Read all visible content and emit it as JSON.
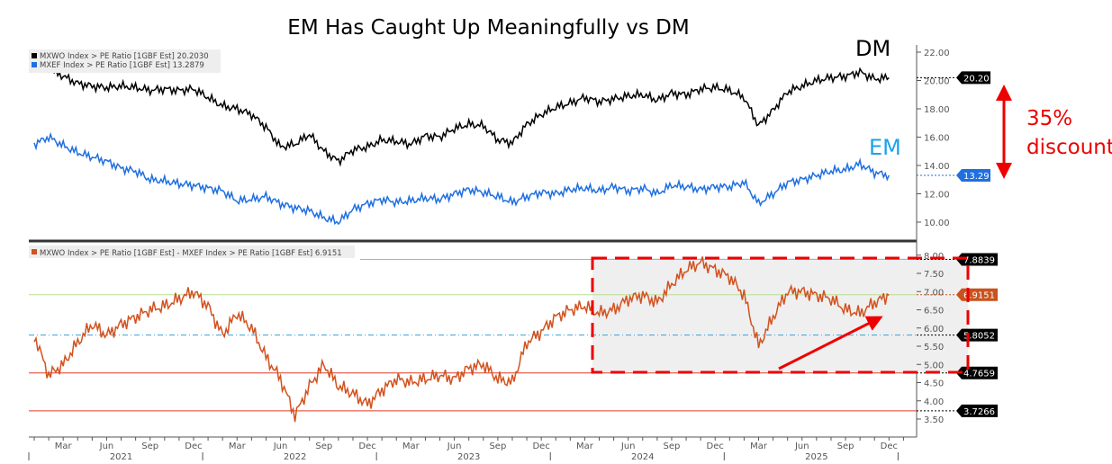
{
  "chart_data": [
    {
      "type": "line",
      "title": "EM Has Caught Up Meaningfully vs DM",
      "ylim": [
        9,
        22.5
      ],
      "yticks": [
        "10.00",
        "12.00",
        "14.00",
        "16.00",
        "18.00",
        "20.00",
        "22.00"
      ],
      "legend": [
        "MXWO Index > PE Ratio [1GBF Est]  20.2030",
        "MXEF Index > PE Ratio [1GBF Est]   13.2879"
      ],
      "legend_placement": "top-left",
      "series": [
        {
          "name": "DM",
          "color": "#000000",
          "last_label": "20.20",
          "values": [
            21.0,
            20.8,
            20.3,
            19.8,
            19.6,
            19.5,
            19.6,
            19.5,
            19.3,
            19.4,
            19.3,
            19.4,
            18.8,
            18.2,
            18.0,
            17.6,
            16.7,
            15.3,
            15.5,
            16.2,
            15.0,
            14.3,
            15.1,
            15.3,
            15.8,
            15.7,
            15.5,
            16.1,
            16.0,
            16.6,
            16.9,
            16.8,
            15.8,
            15.6,
            16.9,
            17.6,
            18.1,
            18.4,
            18.8,
            18.5,
            18.7,
            18.9,
            19.0,
            18.6,
            19.1,
            19.0,
            19.4,
            19.5,
            19.3,
            18.8,
            16.8,
            17.9,
            19.2,
            19.6,
            20.0,
            20.2,
            20.3,
            20.6,
            20.1,
            20.2
          ]
        },
        {
          "name": "EM",
          "color": "#1f6fe0",
          "last_label": "13.29",
          "values": [
            15.5,
            16.0,
            15.4,
            14.9,
            14.6,
            14.3,
            13.8,
            13.6,
            13.0,
            12.9,
            12.7,
            12.6,
            12.4,
            12.2,
            11.5,
            11.6,
            11.8,
            11.3,
            11.0,
            10.8,
            10.3,
            10.0,
            10.9,
            11.3,
            11.6,
            11.4,
            11.5,
            11.7,
            11.6,
            12.0,
            12.3,
            12.1,
            11.8,
            11.4,
            11.8,
            12.1,
            12.0,
            12.3,
            12.4,
            12.2,
            12.5,
            12.2,
            12.4,
            12.0,
            12.6,
            12.5,
            12.3,
            12.5,
            12.5,
            12.8,
            11.3,
            12.0,
            12.8,
            13.0,
            13.3,
            13.6,
            13.7,
            14.1,
            13.5,
            13.3
          ]
        }
      ]
    },
    {
      "type": "line",
      "ylim": [
        3.35,
        8.1
      ],
      "yticks": [
        "3.50",
        "4.00",
        "4.50",
        "5.00",
        "5.50",
        "6.00",
        "6.50",
        "7.00",
        "7.50",
        "8.00"
      ],
      "legend": [
        "MXWO Index > PE Ratio [1GBF Est] - MXEF Index > PE Ratio [1GBF Est]  6.9151"
      ],
      "legend_placement": "top-left",
      "series": [
        {
          "name": "DM - EM spread",
          "color": "#d2521f",
          "last_label": "6.9151",
          "values": [
            5.8,
            4.7,
            5.0,
            5.6,
            6.1,
            5.8,
            6.1,
            6.3,
            6.5,
            6.6,
            6.8,
            7.0,
            6.6,
            5.8,
            6.4,
            6.0,
            5.2,
            4.6,
            3.6,
            4.4,
            5.0,
            4.4,
            4.2,
            3.9,
            4.3,
            4.6,
            4.5,
            4.6,
            4.7,
            4.6,
            4.9,
            5.0,
            4.6,
            4.5,
            5.6,
            5.9,
            6.3,
            6.5,
            6.6,
            6.4,
            6.5,
            6.8,
            6.9,
            6.7,
            7.2,
            7.6,
            7.8,
            7.6,
            7.4,
            6.9,
            5.5,
            6.3,
            7.0,
            7.0,
            6.9,
            6.8,
            6.5,
            6.4,
            6.7,
            6.9
          ]
        }
      ],
      "reference_lines": [
        {
          "value": 7.8839,
          "label": "7.8839",
          "color": "#8fd14f",
          "style": "solid"
        },
        {
          "value": 6.9151,
          "label": "6.9151",
          "color": "#b8e08f",
          "style": "solid"
        },
        {
          "value": 5.8052,
          "label": "5.8052",
          "color": "#3aa0d8",
          "style": "dashdot"
        },
        {
          "value": 4.7659,
          "label": "4.7659",
          "color": "#e03a2a",
          "style": "solid"
        },
        {
          "value": 3.7266,
          "label": "3.7266",
          "color": "#e03a2a",
          "style": "solid"
        }
      ]
    }
  ],
  "x_axis": {
    "start": "2021-01",
    "months": [
      "Mar",
      "Jun",
      "Sep",
      "Dec"
    ],
    "years": [
      "2021",
      "2022",
      "2023",
      "2024",
      "2025"
    ]
  },
  "annotations": {
    "dm_label": "DM",
    "em_label": "EM",
    "discount_pct": "35%",
    "discount_word": "discount"
  }
}
